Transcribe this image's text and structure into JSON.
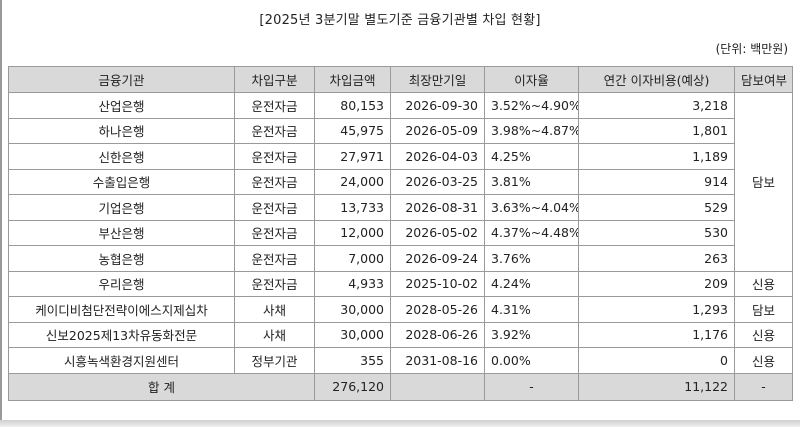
{
  "title": "[2025년 3분기말 별도기준 금융기관별 차입 현황]",
  "unit": "(단위: 백만원)",
  "headers": [
    "금융기관",
    "차입구분",
    "차입금액",
    "최장만기일",
    "이자율",
    "연간 이자비용(예상)",
    "담보여부"
  ],
  "rows": [
    {
      "inst": "산업은행",
      "type": "운전자금",
      "amount": "80,153",
      "maturity": "2026-09-30",
      "rate": "3.52%~4.90%",
      "interest": "3,218"
    },
    {
      "inst": "하나은행",
      "type": "운전자금",
      "amount": "45,975",
      "maturity": "2026-05-09",
      "rate": "3.98%~4.87%",
      "interest": "1,801"
    },
    {
      "inst": "신한은행",
      "type": "운전자금",
      "amount": "27,971",
      "maturity": "2026-04-03",
      "rate": "4.25%",
      "interest": "1,189"
    },
    {
      "inst": "수출입은행",
      "type": "운전자금",
      "amount": "24,000",
      "maturity": "2026-03-25",
      "rate": "3.81%",
      "interest": "914"
    },
    {
      "inst": "기업은행",
      "type": "운전자금",
      "amount": "13,733",
      "maturity": "2026-08-31",
      "rate": "3.63%~4.04%",
      "interest": "529"
    },
    {
      "inst": "부산은행",
      "type": "운전자금",
      "amount": "12,000",
      "maturity": "2026-05-02",
      "rate": "4.37%~4.48%",
      "interest": "530"
    },
    {
      "inst": "농협은행",
      "type": "운전자금",
      "amount": "7,000",
      "maturity": "2026-09-24",
      "rate": "3.76%",
      "interest": "263"
    },
    {
      "inst": "우리은행",
      "type": "운전자금",
      "amount": "4,933",
      "maturity": "2025-10-02",
      "rate": "4.24%",
      "interest": "209",
      "collateral": "신용"
    },
    {
      "inst": "케이디비첨단전략이에스지제십차",
      "type": "사채",
      "amount": "30,000",
      "maturity": "2028-05-26",
      "rate": "4.31%",
      "interest": "1,293",
      "collateral": "담보"
    },
    {
      "inst": "신보2025제13차유동화전문",
      "type": "사채",
      "amount": "30,000",
      "maturity": "2028-06-26",
      "rate": "3.92%",
      "interest": "1,176",
      "collateral": "신용"
    },
    {
      "inst": "시흥녹색환경지원센터",
      "type": "정부기관",
      "amount": "355",
      "maturity": "2031-08-16",
      "rate": "0.00%",
      "interest": "0",
      "collateral": "신용"
    }
  ],
  "merged_collateral": "담보",
  "total": {
    "label": "합  계",
    "amount": "276,120",
    "rate": "-",
    "interest": "11,122",
    "collateral": "-"
  }
}
